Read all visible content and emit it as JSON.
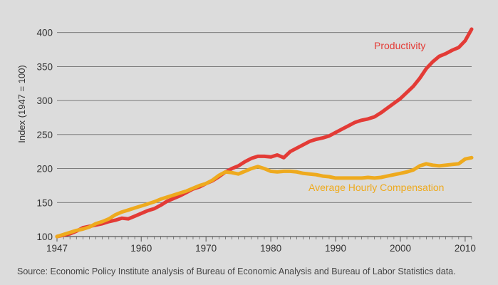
{
  "chart_data": {
    "type": "line",
    "ylabel": "Index (1947 = 100)",
    "ylim": [
      100,
      450
    ],
    "xlim": [
      1947,
      2011
    ],
    "yticks": [
      100,
      150,
      200,
      250,
      300,
      350,
      400
    ],
    "xticks": [
      1947,
      1960,
      1970,
      1980,
      1990,
      2000,
      2010
    ],
    "grid": true,
    "series": [
      {
        "name": "Productivity",
        "color": "#e33b36",
        "x": [
          1947,
          1948,
          1949,
          1950,
          1951,
          1952,
          1953,
          1954,
          1955,
          1956,
          1957,
          1958,
          1959,
          1960,
          1961,
          1962,
          1963,
          1964,
          1965,
          1966,
          1967,
          1968,
          1969,
          1970,
          1971,
          1972,
          1973,
          1974,
          1975,
          1976,
          1977,
          1978,
          1979,
          1980,
          1981,
          1982,
          1983,
          1984,
          1985,
          1986,
          1987,
          1988,
          1989,
          1990,
          1991,
          1992,
          1993,
          1994,
          1995,
          1996,
          1997,
          1998,
          1999,
          2000,
          2001,
          2002,
          2003,
          2004,
          2005,
          2006,
          2007,
          2008,
          2009,
          2010,
          2011
        ],
        "values": [
          100,
          102,
          104,
          108,
          113,
          115,
          117,
          119,
          122,
          124,
          127,
          126,
          130,
          134,
          138,
          141,
          146,
          152,
          156,
          160,
          165,
          170,
          173,
          178,
          182,
          188,
          195,
          200,
          204,
          210,
          215,
          218,
          218,
          217,
          220,
          216,
          225,
          230,
          235,
          240,
          243,
          245,
          248,
          253,
          258,
          263,
          268,
          271,
          273,
          276,
          282,
          289,
          296,
          303,
          312,
          321,
          333,
          347,
          357,
          365,
          369,
          374,
          378,
          388,
          405
        ]
      },
      {
        "name": "Average Hourly Compensation",
        "color": "#eeaa1e",
        "x": [
          1947,
          1948,
          1949,
          1950,
          1951,
          1952,
          1953,
          1954,
          1955,
          1956,
          1957,
          1958,
          1959,
          1960,
          1961,
          1962,
          1963,
          1964,
          1965,
          1966,
          1967,
          1968,
          1969,
          1970,
          1971,
          1972,
          1973,
          1974,
          1975,
          1976,
          1977,
          1978,
          1979,
          1980,
          1981,
          1982,
          1983,
          1984,
          1985,
          1986,
          1987,
          1988,
          1989,
          1990,
          1991,
          1992,
          1993,
          1994,
          1995,
          1996,
          1997,
          1998,
          1999,
          2000,
          2001,
          2002,
          2003,
          2004,
          2005,
          2006,
          2007,
          2008,
          2009,
          2010,
          2011
        ],
        "values": [
          100,
          103,
          106,
          109,
          111,
          114,
          119,
          122,
          126,
          132,
          136,
          139,
          142,
          145,
          148,
          151,
          155,
          158,
          161,
          164,
          167,
          171,
          175,
          178,
          183,
          190,
          195,
          194,
          192,
          196,
          200,
          203,
          200,
          196,
          195,
          196,
          196,
          195,
          193,
          192,
          191,
          189,
          188,
          186,
          186,
          186,
          186,
          186,
          187,
          186,
          187,
          189,
          191,
          193,
          195,
          198,
          204,
          207,
          205,
          204,
          205,
          206,
          207,
          214,
          216
        ]
      }
    ],
    "annotations": [
      {
        "text": "Productivity",
        "series": 0
      },
      {
        "text": "Average Hourly Compensation",
        "series": 1
      }
    ],
    "source": "Source: Economic Policy Institute analysis of Bureau of Economic Analysis and Bureau of Labor Statistics data."
  }
}
